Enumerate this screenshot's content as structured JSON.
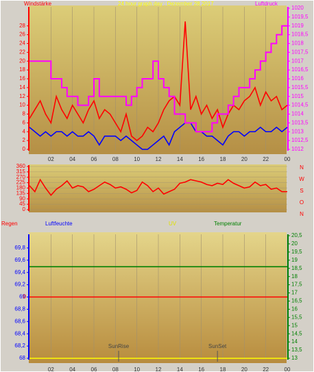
{
  "chart_data": [
    {
      "type": "line",
      "title": "24 hour graph day : Dezember 28 2017",
      "ylabel": "Windstärke",
      "y2label": "Luftdruck",
      "x": [
        0,
        0.5,
        1,
        1.5,
        2,
        2.5,
        3,
        3.5,
        4,
        4.5,
        5,
        5.5,
        6,
        6.5,
        7,
        7.5,
        8,
        8.5,
        9,
        9.5,
        10,
        10.5,
        11,
        11.5,
        12,
        12.5,
        13,
        13.5,
        14,
        14.5,
        15,
        15.5,
        16,
        16.5,
        17,
        17.5,
        18,
        18.5,
        19,
        19.5,
        20,
        20.5,
        21,
        21.5,
        22,
        22.5,
        23,
        23.5,
        24
      ],
      "xlim": [
        0,
        24
      ],
      "xticks": [
        {
          "value": 2,
          "label": "02"
        },
        {
          "value": 4,
          "label": "04"
        },
        {
          "value": 6,
          "label": "06"
        },
        {
          "value": 8,
          "label": "08"
        },
        10,
        12,
        14,
        16,
        18,
        20,
        22,
        {
          "value": 24,
          "label": "00"
        }
      ],
      "ylim": [
        0,
        32
      ],
      "yticks": [
        0,
        2,
        4,
        6,
        8,
        10,
        12,
        14,
        16,
        18,
        20,
        22,
        24,
        26,
        28
      ],
      "y2lim": [
        1012,
        1020
      ],
      "y2ticks": [
        1012,
        {
          "value": 1012.5,
          "label": "1012,5"
        },
        1013,
        {
          "value": 1013.5,
          "label": "1013,5"
        },
        1014,
        {
          "value": 1014.5,
          "label": "1014,5"
        },
        1015,
        {
          "value": 1015.5,
          "label": "1015,5"
        },
        1016,
        {
          "value": 1016.5,
          "label": "1016,5"
        },
        1017,
        {
          "value": 1017.5,
          "label": "1017,5"
        },
        1018,
        {
          "value": 1018.5,
          "label": "1018,5"
        },
        1019,
        {
          "value": 1019.5,
          "label": "1019,5"
        },
        1020
      ],
      "grid": true,
      "series": [
        {
          "color": "#ff0000",
          "values": [
            7,
            9,
            11,
            8,
            6,
            12,
            9,
            7,
            10,
            8,
            6,
            9,
            11,
            7,
            9,
            8,
            6,
            4,
            8,
            3,
            2,
            3,
            5,
            4,
            6,
            9,
            11,
            12,
            10,
            29,
            9,
            12,
            8,
            10,
            7,
            9,
            5,
            8,
            10,
            9,
            11,
            12,
            14,
            10,
            13,
            11,
            12,
            9,
            10
          ]
        },
        {
          "color": "#0000ff",
          "values": [
            5,
            4,
            3,
            4,
            3,
            4,
            4,
            3,
            4,
            3,
            3,
            4,
            3,
            1,
            3,
            3,
            3,
            2,
            3,
            2,
            1,
            0,
            0,
            1,
            2,
            3,
            1,
            4,
            5,
            6,
            6,
            4,
            4,
            3,
            3,
            2,
            1,
            3,
            4,
            4,
            3,
            4,
            4,
            5,
            4,
            4,
            5,
            4,
            5
          ]
        },
        {
          "color": "#ff00ff",
          "axis": "y2",
          "step": true,
          "values": [
            1017,
            1017,
            1017,
            1017,
            1016,
            1016,
            1015.5,
            1015,
            1015,
            1014.5,
            1014.5,
            1015,
            1016,
            1015,
            1015,
            1015,
            1015,
            1015,
            1014.5,
            1015,
            1015.5,
            1016,
            1016,
            1017,
            1016,
            1015.5,
            1015,
            1014,
            1014,
            1013.5,
            1013.5,
            1013,
            1013,
            1013,
            1013.5,
            1014,
            1014,
            1014.5,
            1015,
            1015.5,
            1015.5,
            1016,
            1016.5,
            1017,
            1017.5,
            1018,
            1018.5,
            1019,
            1019
          ]
        }
      ]
    },
    {
      "type": "line",
      "direction_labels": [
        "N",
        "W",
        "S",
        "O",
        "N"
      ],
      "x": [
        0,
        0.5,
        1,
        1.5,
        2,
        2.5,
        3,
        3.5,
        4,
        4.5,
        5,
        5.5,
        6,
        6.5,
        7,
        7.5,
        8,
        8.5,
        9,
        9.5,
        10,
        10.5,
        11,
        11.5,
        12,
        12.5,
        13,
        13.5,
        14,
        14.5,
        15,
        15.5,
        16,
        16.5,
        17,
        17.5,
        18,
        18.5,
        19,
        19.5,
        20,
        20.5,
        21,
        21.5,
        22,
        22.5,
        23,
        23.5,
        24
      ],
      "xlim": [
        0,
        24
      ],
      "ylim": [
        0,
        360
      ],
      "yticks": [
        0,
        45,
        90,
        135,
        180,
        225,
        270,
        315,
        360
      ],
      "grid": true,
      "series": [
        {
          "color": "#ff0000",
          "values": [
            200,
            150,
            250,
            180,
            120,
            170,
            200,
            240,
            180,
            200,
            190,
            150,
            170,
            200,
            230,
            210,
            180,
            190,
            170,
            140,
            160,
            230,
            200,
            150,
            180,
            130,
            150,
            170,
            220,
            230,
            250,
            240,
            230,
            210,
            200,
            220,
            210,
            250,
            220,
            200,
            180,
            190,
            230,
            200,
            210,
            170,
            180,
            150,
            150
          ]
        }
      ]
    },
    {
      "type": "line",
      "x": [
        0,
        24
      ],
      "xlim": [
        0,
        24
      ],
      "xticks": [
        {
          "value": 2,
          "label": "02"
        },
        {
          "value": 4,
          "label": "04"
        },
        {
          "value": 6,
          "label": "06"
        },
        {
          "value": 8,
          "label": "08"
        },
        10,
        12,
        14,
        16,
        18,
        20,
        22,
        {
          "value": 24,
          "label": "00"
        }
      ],
      "ylim": [
        68,
        70
      ],
      "yticks": [
        68,
        {
          "value": 68.2,
          "label": "68,2"
        },
        {
          "value": 68.4,
          "label": "68,4"
        },
        {
          "value": 68.6,
          "label": "68,6"
        },
        {
          "value": 68.8,
          "label": "68,8"
        },
        69,
        {
          "value": 69.2,
          "label": "69,2"
        },
        {
          "value": 69.4,
          "label": "69,4"
        },
        {
          "value": 69.6,
          "label": "69,6"
        },
        {
          "value": 69.8,
          "label": "69,8"
        }
      ],
      "y2lim": [
        13,
        20.5
      ],
      "y2ticks": [
        13,
        {
          "value": 13.5,
          "label": "13,5"
        },
        14,
        {
          "value": 14.5,
          "label": "14,5"
        },
        15,
        {
          "value": 15.5,
          "label": "15,5"
        },
        16,
        {
          "value": 16.5,
          "label": "16,5"
        },
        17,
        {
          "value": 17.5,
          "label": "17,5"
        },
        18,
        {
          "value": 18.5,
          "label": "18,5"
        },
        19,
        {
          "value": 19.5,
          "label": "19,5"
        },
        20,
        {
          "value": 20.5,
          "label": "20,5"
        }
      ],
      "y3lim": [
        0,
        15
      ],
      "grid": true,
      "series": [
        {
          "name": "Regen",
          "color": "#ff0000",
          "values": [
            69,
            69
          ]
        },
        {
          "name": "Luftfeuchte",
          "color": "#0000ff",
          "values": [
            null,
            null
          ]
        },
        {
          "name": "UV",
          "color": "#ffff00",
          "axis": "y3",
          "values": [
            0,
            0
          ]
        },
        {
          "name": "Temperatur",
          "color": "#008000",
          "axis": "y2",
          "values": [
            18.6,
            18.6
          ]
        }
      ],
      "annotations": [
        {
          "text": "0",
          "x": 0,
          "y": 69
        },
        {
          "text": "SunRise",
          "x": 8.3
        },
        {
          "text": "SunSet",
          "x": 17.5
        }
      ]
    }
  ]
}
